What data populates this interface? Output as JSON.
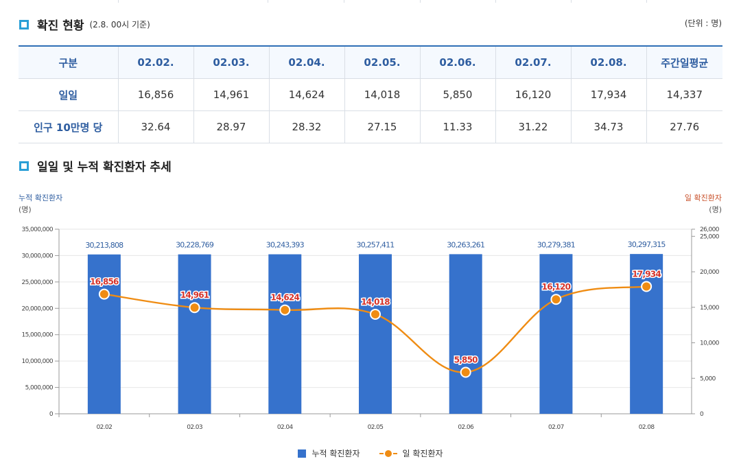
{
  "section1": {
    "title": "확진 현황",
    "subtitle": "(2.8. 00시 기준)",
    "unit": "(단위 : 명)"
  },
  "table": {
    "headers": [
      "구분",
      "02.02.",
      "02.03.",
      "02.04.",
      "02.05.",
      "02.06.",
      "02.07.",
      "02.08.",
      "주간일평균"
    ],
    "rows": [
      {
        "label": "일일",
        "values": [
          "16,856",
          "14,961",
          "14,624",
          "14,018",
          "5,850",
          "16,120",
          "17,934",
          "14,337"
        ]
      },
      {
        "label": "인구 10만명 당",
        "values": [
          "32.64",
          "28.97",
          "28.32",
          "27.15",
          "11.33",
          "31.22",
          "34.73",
          "27.76"
        ]
      }
    ]
  },
  "section2": {
    "title": "일일 및 누적 확진환자 추세"
  },
  "chart_data": {
    "type": "bar+line",
    "categories": [
      "02.02",
      "02.03",
      "02.04",
      "02.05",
      "02.06",
      "02.07",
      "02.08"
    ],
    "series": [
      {
        "name": "누적 확진환자",
        "type": "bar",
        "axis": "left",
        "color": "#3672cc",
        "values": [
          30213808,
          30228769,
          30243393,
          30257411,
          30263261,
          30279381,
          30297315
        ],
        "labels": [
          "30,213,808",
          "30,228,769",
          "30,243,393",
          "30,257,411",
          "30,263,261",
          "30,279,381",
          "30,297,315"
        ]
      },
      {
        "name": "일 확진환자",
        "type": "line",
        "axis": "right",
        "color": "#ef8c13",
        "values": [
          16856,
          14961,
          14624,
          14018,
          5850,
          16120,
          17934
        ],
        "labels": [
          "16,856",
          "14,961",
          "14,624",
          "14,018",
          "5,850",
          "16,120",
          "17,934"
        ]
      }
    ],
    "left_axis": {
      "title": "누적 확진환자",
      "unit": "(명)",
      "min": 0,
      "max": 35000000,
      "ticks": [
        0,
        5000000,
        10000000,
        15000000,
        20000000,
        25000000,
        30000000,
        35000000
      ],
      "tick_labels": [
        "0",
        "5,000,000",
        "10,000,000",
        "15,000,000",
        "20,000,000",
        "25,000,000",
        "30,000,000",
        "35,000,000"
      ]
    },
    "right_axis": {
      "title": "일 확진환자",
      "unit": "(명)",
      "min": 0,
      "max": 26000,
      "ticks": [
        0,
        5000,
        10000,
        15000,
        20000,
        25000,
        26000
      ],
      "tick_labels": [
        "0",
        "5,000",
        "10,000",
        "15,000",
        "20,000",
        "25,000",
        "26,000"
      ]
    },
    "grid": true,
    "legend_position": "bottom"
  },
  "colors": {
    "accent": "#2a9fd6",
    "header_text": "#2e5da0",
    "bar": "#3672cc",
    "line": "#ef8c13",
    "line_label": "#d6332a"
  }
}
